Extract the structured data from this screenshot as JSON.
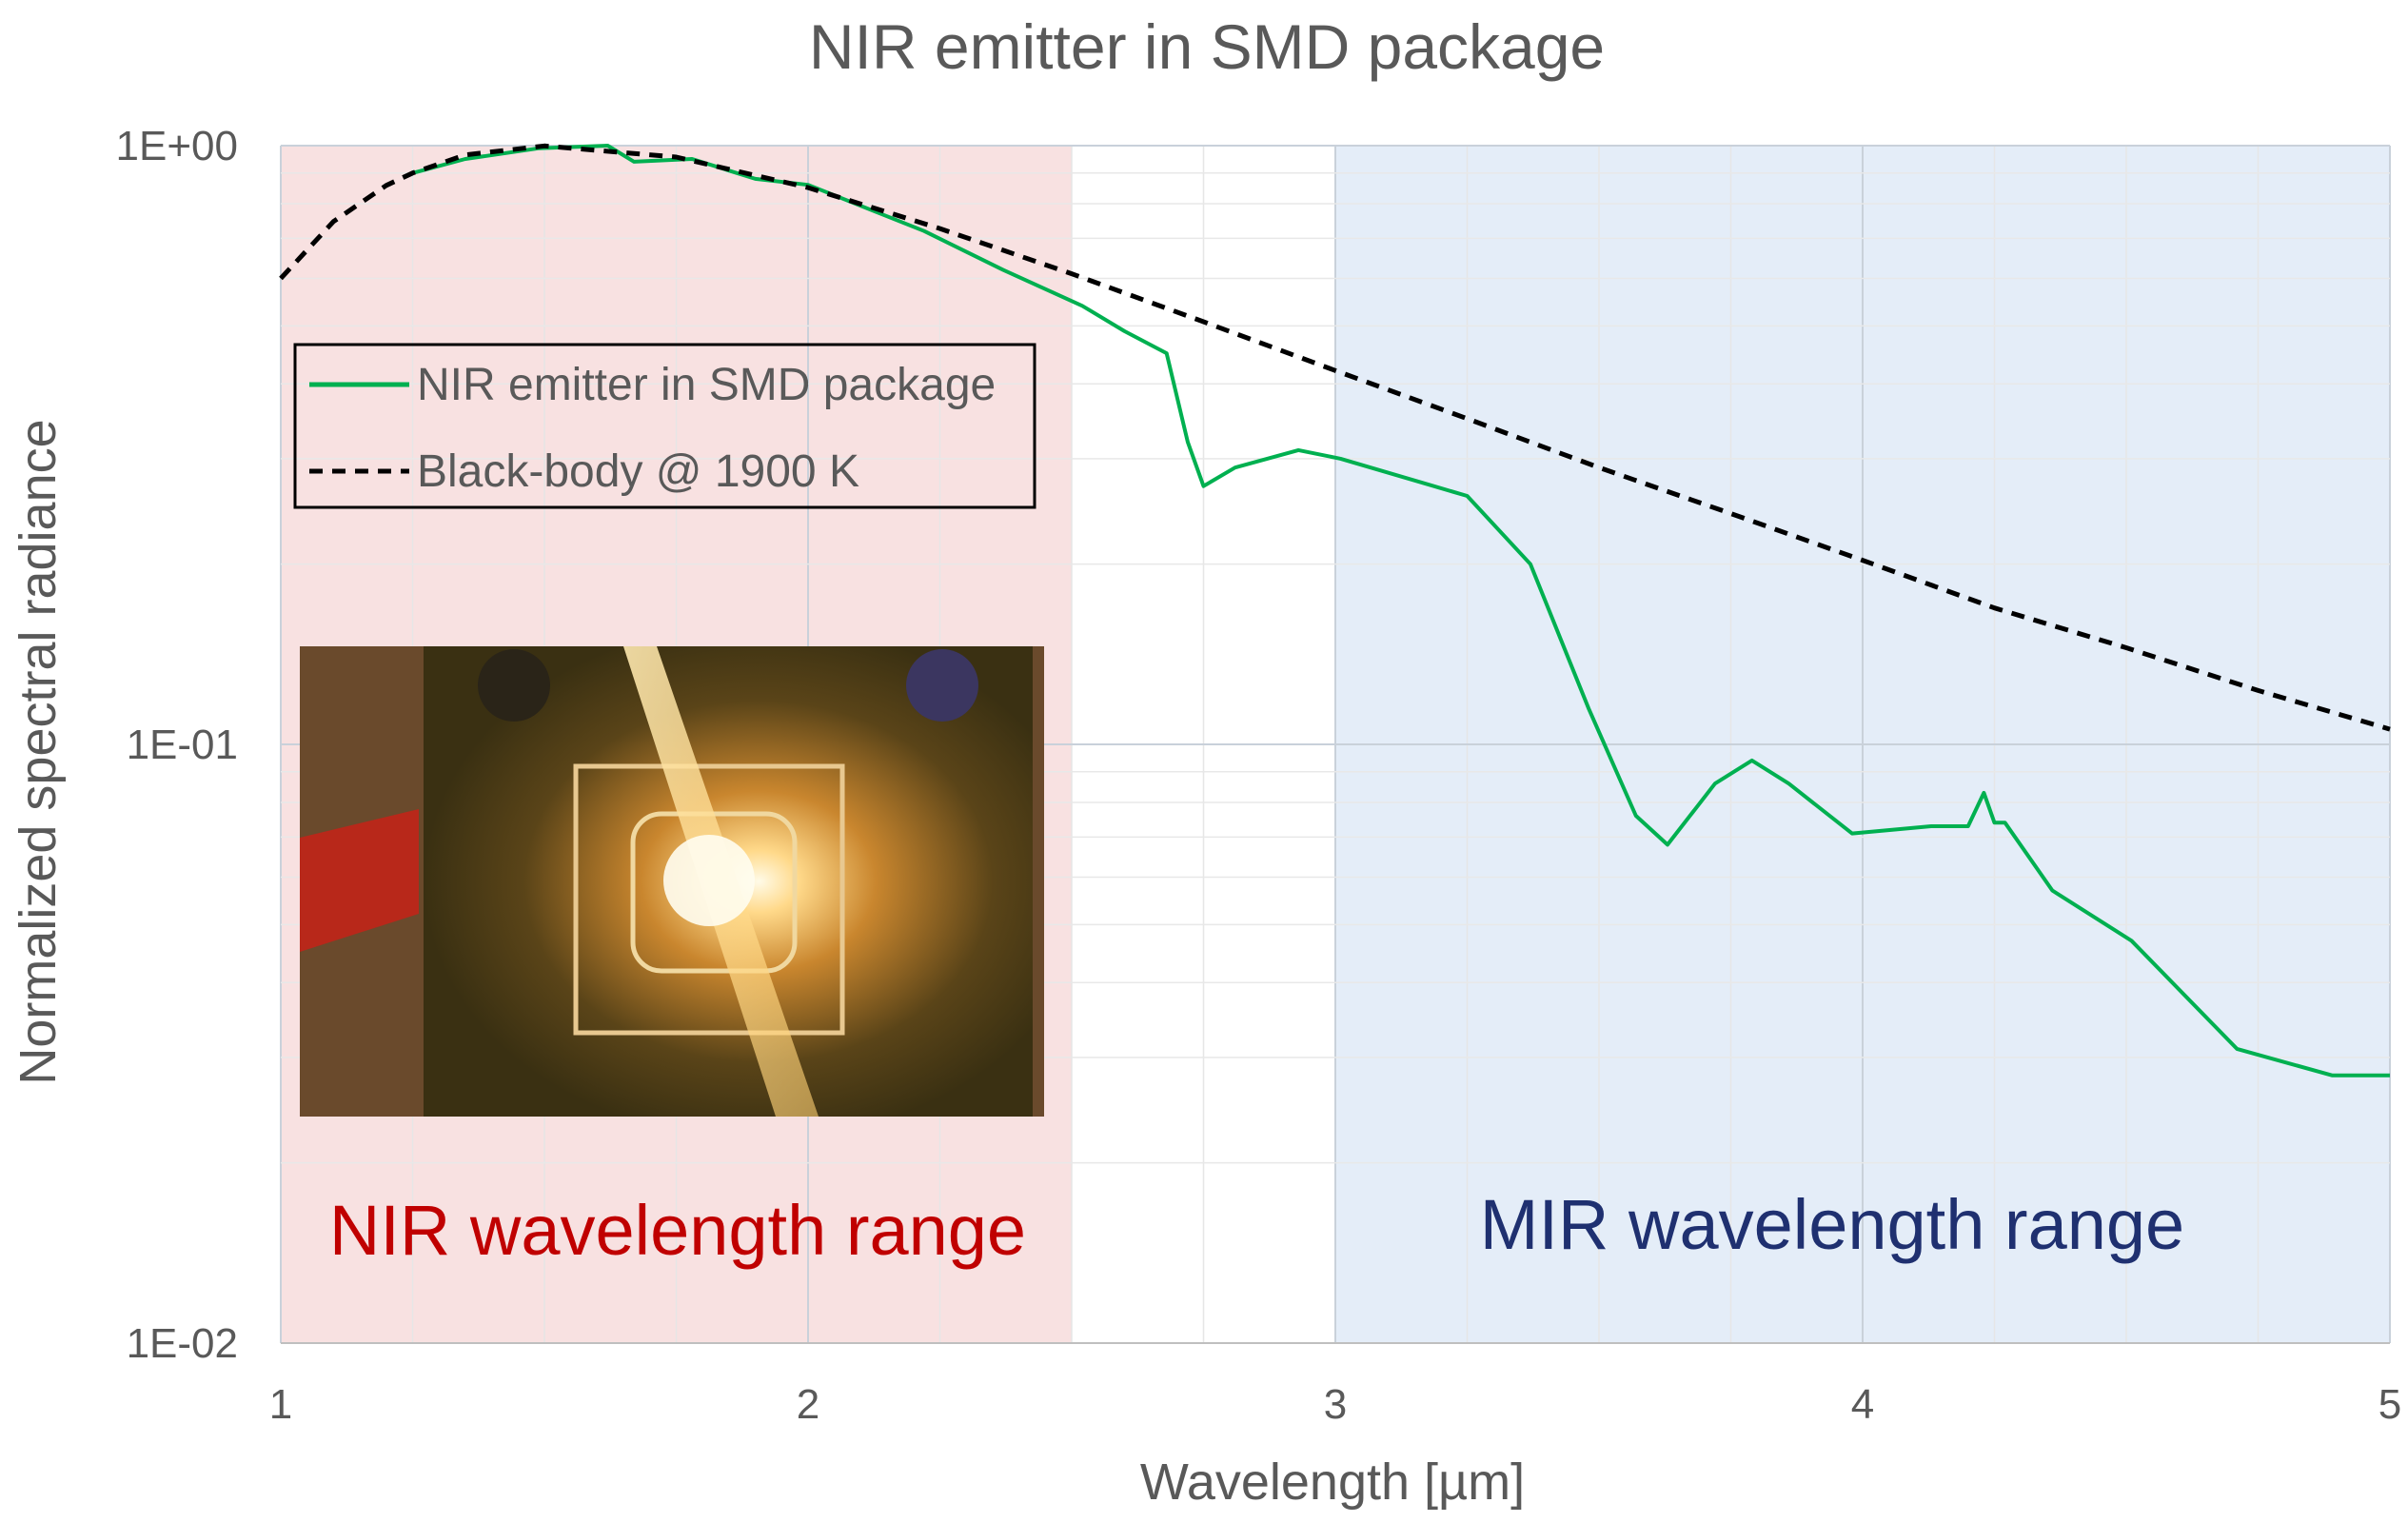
{
  "chart_data": {
    "type": "line",
    "title": "NIR emitter in SMD package",
    "xlabel": "Wavelength [µm]",
    "ylabel": "Normalized spectral radiance",
    "xlim": [
      1,
      5
    ],
    "ylim": [
      0.01,
      1
    ],
    "yscale": "log",
    "grid": true,
    "x_ticks": [
      "1",
      "2",
      "3",
      "4",
      "5"
    ],
    "y_ticks": [
      "1E+00",
      "1E-01",
      "1E-02"
    ],
    "legend_position": "upper-left",
    "series": [
      {
        "name": "NIR emitter in SMD package",
        "color": "#00b050",
        "style": "solid",
        "x": [
          1.25,
          1.35,
          1.49,
          1.62,
          1.67,
          1.78,
          1.9,
          2.0,
          2.22,
          2.37,
          2.52,
          2.6,
          2.68,
          2.72,
          2.75,
          2.81,
          2.93,
          3.01,
          3.25,
          3.37,
          3.48,
          3.57,
          3.63,
          3.72,
          3.79,
          3.86,
          3.98,
          4.13,
          4.2,
          4.23,
          4.25,
          4.27,
          4.36,
          4.51,
          4.71,
          4.89,
          5.0
        ],
        "y": [
          0.9,
          0.95,
          0.99,
          1.0,
          0.94,
          0.95,
          0.88,
          0.86,
          0.72,
          0.62,
          0.54,
          0.49,
          0.45,
          0.32,
          0.27,
          0.29,
          0.31,
          0.3,
          0.26,
          0.2,
          0.115,
          0.076,
          0.068,
          0.086,
          0.094,
          0.086,
          0.071,
          0.073,
          0.073,
          0.083,
          0.074,
          0.074,
          0.057,
          0.047,
          0.031,
          0.028,
          0.028
        ]
      },
      {
        "name": "Black-body @ 1900 K",
        "color": "#000000",
        "style": "dashed",
        "x": [
          1.0,
          1.1,
          1.2,
          1.25,
          1.35,
          1.5,
          1.75,
          2.0,
          2.25,
          2.5,
          2.75,
          3.0,
          3.25,
          3.5,
          3.75,
          4.0,
          4.25,
          4.5,
          4.75,
          5.0
        ],
        "y": [
          0.6,
          0.747,
          0.858,
          0.9,
          0.965,
          0.999,
          0.957,
          0.851,
          0.727,
          0.611,
          0.508,
          0.421,
          0.35,
          0.29,
          0.243,
          0.203,
          0.169,
          0.145,
          0.123,
          0.106
        ]
      }
    ],
    "regions": [
      {
        "label": "NIR wavelength range",
        "x": [
          1,
          2.5
        ],
        "fill": "#f8e1e1",
        "text_color": "#c00000"
      },
      {
        "label": "MIR wavelength range",
        "x": [
          3,
          5
        ],
        "fill": "#e4edf8",
        "text_color": "#1f3070"
      }
    ]
  }
}
